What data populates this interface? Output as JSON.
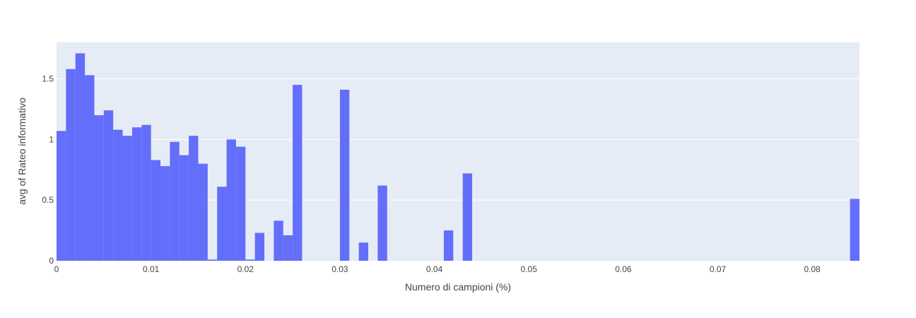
{
  "chart_data": {
    "type": "bar",
    "title": "",
    "xlabel": "Numero di campioni (%)",
    "ylabel": "avg of Rateo informativo",
    "xlim": [
      0,
      0.085
    ],
    "ylim": [
      0,
      1.8
    ],
    "bin_width": 0.001,
    "x_ticks": [
      0,
      0.01,
      0.02,
      0.03,
      0.04,
      0.05,
      0.06,
      0.07,
      0.08
    ],
    "x_tick_labels": [
      "0",
      "0.01",
      "0.02",
      "0.03",
      "0.04",
      "0.05",
      "0.06",
      "0.07",
      "0.08"
    ],
    "y_ticks": [
      0,
      0.5,
      1,
      1.5
    ],
    "y_tick_labels": [
      "0",
      "0.5",
      "1",
      "1.5"
    ],
    "grid": true,
    "bar_color": "#636efa",
    "plot_bgcolor": "#e5ecf6",
    "bins": [
      {
        "x": 0.0,
        "y": 1.07
      },
      {
        "x": 0.001,
        "y": 1.58
      },
      {
        "x": 0.002,
        "y": 1.71
      },
      {
        "x": 0.003,
        "y": 1.53
      },
      {
        "x": 0.004,
        "y": 1.2
      },
      {
        "x": 0.005,
        "y": 1.24
      },
      {
        "x": 0.006,
        "y": 1.08
      },
      {
        "x": 0.007,
        "y": 1.03
      },
      {
        "x": 0.008,
        "y": 1.1
      },
      {
        "x": 0.009,
        "y": 1.12
      },
      {
        "x": 0.01,
        "y": 0.83
      },
      {
        "x": 0.011,
        "y": 0.78
      },
      {
        "x": 0.012,
        "y": 0.98
      },
      {
        "x": 0.013,
        "y": 0.87
      },
      {
        "x": 0.014,
        "y": 1.03
      },
      {
        "x": 0.015,
        "y": 0.8
      },
      {
        "x": 0.016,
        "y": 0.01
      },
      {
        "x": 0.017,
        "y": 0.61
      },
      {
        "x": 0.018,
        "y": 1.0
      },
      {
        "x": 0.019,
        "y": 0.94
      },
      {
        "x": 0.02,
        "y": 0.01
      },
      {
        "x": 0.021,
        "y": 0.23
      },
      {
        "x": 0.023,
        "y": 0.33
      },
      {
        "x": 0.024,
        "y": 0.21
      },
      {
        "x": 0.025,
        "y": 1.45
      },
      {
        "x": 0.03,
        "y": 1.41
      },
      {
        "x": 0.032,
        "y": 0.15
      },
      {
        "x": 0.034,
        "y": 0.62
      },
      {
        "x": 0.041,
        "y": 0.25
      },
      {
        "x": 0.043,
        "y": 0.72
      },
      {
        "x": 0.084,
        "y": 0.51
      }
    ]
  }
}
